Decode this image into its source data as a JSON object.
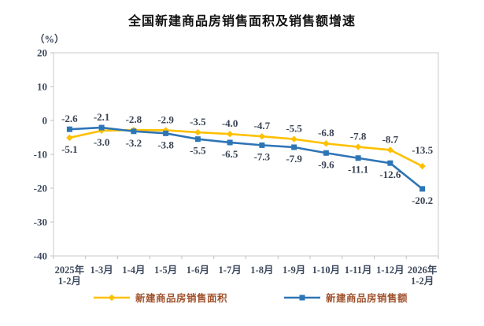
{
  "title": "全国新建商品房销售面积及销售额增速",
  "unit_label": "（%）",
  "colors": {
    "background": "#ffffff",
    "frame": "#d9d9d9",
    "tick": "#bfbfbf",
    "axis_text": "#3e4a5e",
    "value_text": "#3a4354",
    "legend_text": "#a0522d",
    "title_text": "#121212",
    "series_area": "#ffc000",
    "series_amount": "#2e75b6"
  },
  "chart_data": {
    "type": "line",
    "title": "全国新建商品房销售面积及销售额增速",
    "ylabel": "（%）",
    "categories": [
      "2025年\n1-2月",
      "1-3月",
      "1-4月",
      "1-5月",
      "1-6月",
      "1-7月",
      "1-8月",
      "1-9月",
      "1-10月",
      "1-11月",
      "1-12月",
      "2026年\n1-2月"
    ],
    "series": [
      {
        "name": "新建商品房销售面积",
        "color": "#ffc000",
        "marker": "diamond",
        "values": [
          -5.1,
          -3.0,
          -2.8,
          -2.9,
          -3.5,
          -4.0,
          -4.7,
          -5.5,
          -6.8,
          -7.8,
          -8.7,
          -13.5
        ]
      },
      {
        "name": "新建商品房销售额",
        "color": "#2e75b6",
        "marker": "square",
        "values": [
          -2.6,
          -2.1,
          -3.2,
          -3.8,
          -5.5,
          -6.5,
          -7.3,
          -7.9,
          -9.6,
          -11.1,
          -12.6,
          -20.2
        ]
      }
    ],
    "ylim": [
      -40,
      20
    ],
    "y_ticks": [
      20,
      10,
      0,
      -10,
      -20,
      -30,
      -40
    ],
    "grid": false,
    "data_labels": true,
    "legend_position": "bottom"
  },
  "legend": {
    "items": [
      {
        "label": "新建商品房销售面积",
        "color": "#ffc000",
        "marker": "diamond"
      },
      {
        "label": "新建商品房销售额",
        "color": "#2e75b6",
        "marker": "square"
      }
    ]
  }
}
